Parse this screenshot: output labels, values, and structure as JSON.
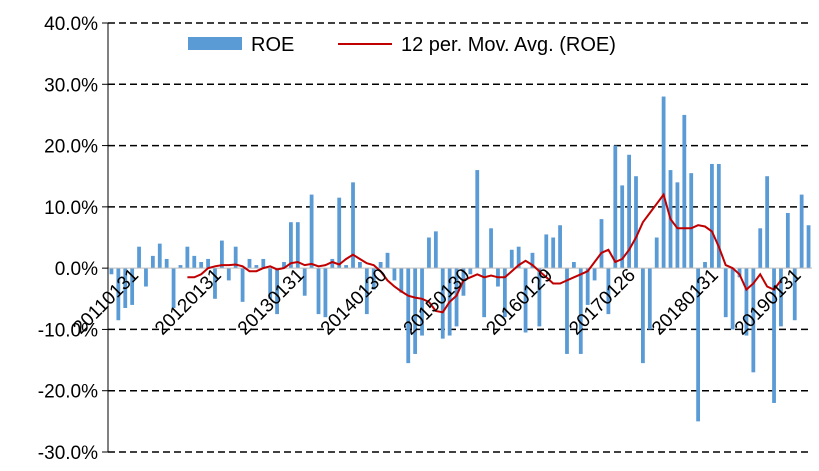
{
  "chart_data": {
    "type": "bar",
    "ylim": [
      -30,
      40
    ],
    "yticks": [
      40,
      30,
      20,
      10,
      0,
      -10,
      -20,
      -30
    ],
    "ytick_labels": [
      "40.0%",
      "30.0%",
      "20.0%",
      "10.0%",
      "0.0%",
      "-10.0%",
      "-20.0%",
      "-30.0%"
    ],
    "grid": true,
    "legend": "top",
    "x_tick_labels": [
      "20110131",
      "20120131",
      "20130131",
      "20140130",
      "20150130",
      "20160129",
      "20170126",
      "20180131",
      "20190131"
    ],
    "x_tick_index": [
      0,
      12,
      24,
      36,
      48,
      60,
      72,
      84,
      96
    ],
    "series": [
      {
        "name": "ROE",
        "kind": "bar",
        "color": "#5B9BD5",
        "values": [
          -1.0,
          -8.5,
          -6.5,
          -6.0,
          3.5,
          -3.0,
          2.0,
          4.0,
          1.5,
          -6.5,
          0.5,
          3.5,
          2.0,
          1.0,
          1.5,
          -5.0,
          4.5,
          -2.0,
          3.5,
          -5.5,
          1.5,
          0.5,
          1.5,
          -5.0,
          -7.5,
          1.0,
          7.5,
          7.5,
          -4.5,
          12.0,
          -7.5,
          -8.0,
          1.5,
          11.5,
          0.5,
          14.0,
          1.0,
          -7.5,
          -3.5,
          1.0,
          2.5,
          -2.0,
          -4.0,
          -15.5,
          -14.0,
          -11.0,
          5.0,
          6.0,
          -11.5,
          -11.0,
          -9.5,
          -4.5,
          -1.0,
          16.0,
          -8.0,
          6.5,
          -3.0,
          -8.0,
          3.0,
          3.5,
          -10.5,
          2.5,
          -9.5,
          5.5,
          5.0,
          7.0,
          -14.0,
          1.0,
          -14.0,
          -6.0,
          -2.0,
          8.0,
          -7.5,
          20.0,
          13.5,
          18.5,
          15.0,
          -15.5,
          -10.0,
          5.0,
          28.0,
          16.0,
          14.0,
          25.0,
          15.5,
          -25.0,
          1.0,
          17.0,
          17.0,
          -8.0,
          -10.0,
          -1.5,
          -11.0,
          -17.0,
          6.5,
          15.0,
          -22.0,
          -9.5,
          9.0,
          -8.5,
          12.0,
          7.0
        ]
      },
      {
        "name": "12 per. Mov. Avg. (ROE)",
        "kind": "line",
        "color": "#C00000",
        "start_index": 11,
        "values": [
          -1.5,
          -1.5,
          -1.0,
          0.0,
          0.3,
          0.5,
          0.5,
          0.6,
          0.3,
          -0.5,
          -0.5,
          0.0,
          0.3,
          -0.2,
          0.0,
          0.8,
          1.0,
          0.5,
          0.7,
          0.3,
          0.5,
          1.0,
          0.6,
          1.5,
          2.2,
          1.5,
          0.8,
          0.5,
          -0.5,
          -2.0,
          -3.0,
          -3.8,
          -4.5,
          -4.8,
          -5.0,
          -5.5,
          -7.0,
          -7.2,
          -5.5,
          -4.5,
          -2.0,
          -1.5,
          -1.0,
          -1.5,
          -1.2,
          -1.5,
          -1.5,
          -0.5,
          0.5,
          1.2,
          0.5,
          -0.5,
          -1.5,
          -2.5,
          -2.5,
          -2.0,
          -1.5,
          -1.0,
          -0.5,
          1.0,
          2.5,
          3.0,
          1.0,
          1.5,
          3.0,
          5.0,
          7.5,
          9.0,
          10.5,
          12.0,
          8.0,
          6.5,
          6.5,
          6.5,
          7.0,
          6.8,
          6.0,
          3.5,
          0.5,
          0.0,
          -1.0,
          -3.5,
          -2.5,
          -1.0,
          -3.0,
          -3.5,
          -2.0
        ]
      }
    ]
  }
}
